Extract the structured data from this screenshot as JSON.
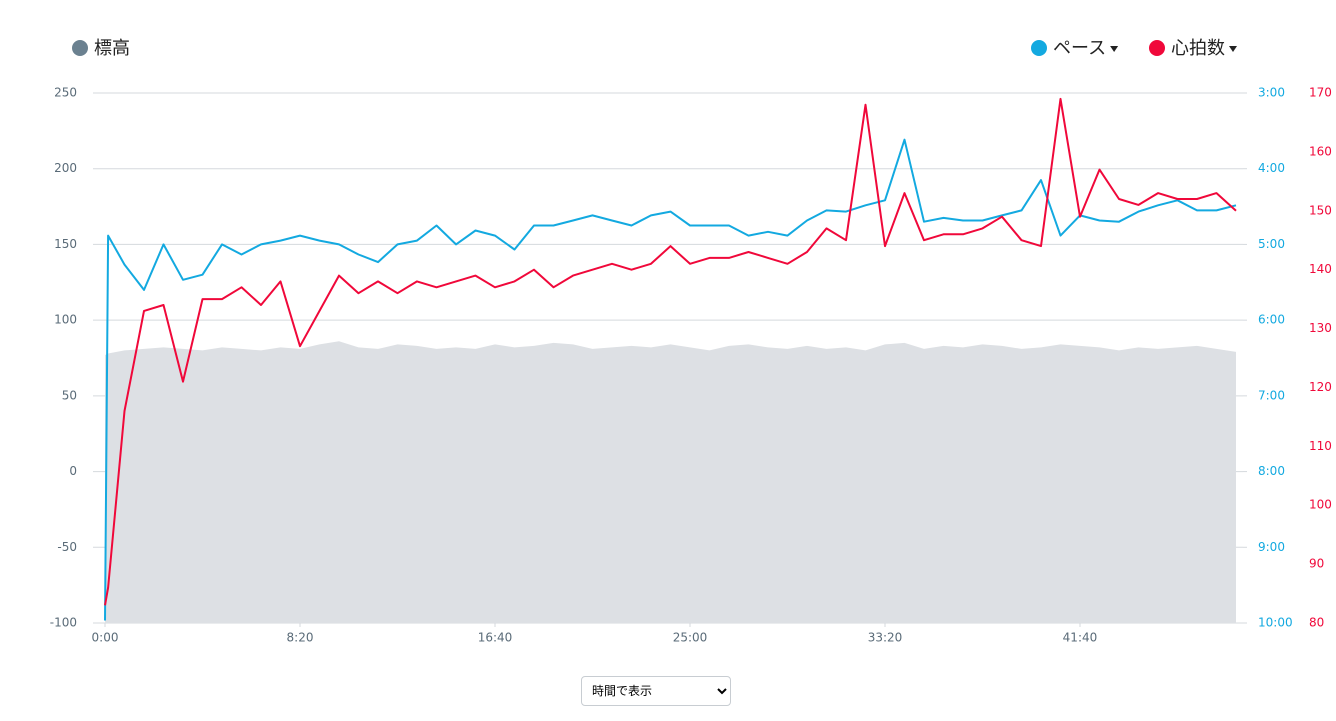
{
  "chart_data": {
    "type": "multi-axis-line",
    "x": [
      0,
      8,
      50,
      100,
      150,
      200,
      250,
      300,
      350,
      400,
      450,
      500,
      550,
      600,
      650,
      700,
      750,
      800,
      850,
      900,
      950,
      1000,
      1050,
      1100,
      1150,
      1200,
      1250,
      1300,
      1350,
      1400,
      1450,
      1500,
      1550,
      1600,
      1650,
      1700,
      1750,
      1800,
      1850,
      1900,
      1950,
      2000,
      2050,
      2100,
      2150,
      2200,
      2250,
      2300,
      2350,
      2400,
      2450,
      2500,
      2550,
      2600,
      2650,
      2700,
      2750,
      2800,
      2850,
      2900
    ],
    "xlim": [
      0,
      2918
    ],
    "xticks": [
      {
        "value": 0,
        "label": "0:00"
      },
      {
        "value": 500,
        "label": "8:20"
      },
      {
        "value": 1000,
        "label": "16:40"
      },
      {
        "value": 1500,
        "label": "25:00"
      },
      {
        "value": 2000,
        "label": "33:20"
      },
      {
        "value": 2500,
        "label": "41:40"
      }
    ],
    "ylim": [
      -100,
      250
    ],
    "yticks": [
      -100,
      -50,
      0,
      50,
      100,
      150,
      200,
      250
    ],
    "y2lim": [
      600,
      180
    ],
    "y2ticks": [
      {
        "value": 180,
        "label": "3:00"
      },
      {
        "value": 240,
        "label": "4:00"
      },
      {
        "value": 300,
        "label": "5:00"
      },
      {
        "value": 360,
        "label": "6:00"
      },
      {
        "value": 420,
        "label": "7:00"
      },
      {
        "value": 480,
        "label": "8:00"
      },
      {
        "value": 540,
        "label": "9:00"
      },
      {
        "value": 600,
        "label": "10:00"
      }
    ],
    "y3lim": [
      80,
      170
    ],
    "y3ticks": [
      80,
      90,
      100,
      110,
      120,
      130,
      140,
      150,
      160,
      170
    ],
    "grid": true,
    "series": [
      {
        "name": "標高",
        "type": "area",
        "axis": "y",
        "color": "#6b8190",
        "fill": "#dde0e4",
        "values": [
          77,
          78,
          80,
          81,
          82,
          81,
          80,
          82,
          81,
          80,
          82,
          81,
          84,
          86,
          82,
          81,
          84,
          83,
          81,
          82,
          81,
          84,
          82,
          83,
          85,
          84,
          81,
          82,
          83,
          82,
          84,
          82,
          80,
          83,
          84,
          82,
          81,
          83,
          81,
          82,
          80,
          84,
          85,
          81,
          83,
          82,
          84,
          83,
          81,
          82,
          84,
          83,
          82,
          80,
          82,
          81,
          82,
          83,
          81,
          79
        ]
      },
      {
        "name": "ペース",
        "type": "line",
        "axis": "y2",
        "color": "#13a9e0",
        "values": [
          598,
          293,
          316,
          336,
          300,
          328,
          324,
          300,
          308,
          300,
          297,
          293,
          297,
          300,
          308,
          314,
          300,
          297,
          285,
          300,
          289,
          293,
          304,
          285,
          285,
          281,
          277,
          281,
          285,
          277,
          274,
          285,
          285,
          285,
          293,
          290,
          293,
          281,
          273,
          274,
          269,
          265,
          217,
          282,
          279,
          281,
          281,
          277,
          273,
          249,
          293,
          277,
          281,
          282,
          274,
          269,
          265,
          273,
          273,
          269
        ]
      },
      {
        "name": "心拍数",
        "type": "line",
        "axis": "y3",
        "color": "#f0083a",
        "values": [
          83,
          86,
          116,
          133,
          134,
          121,
          135,
          135,
          137,
          134,
          138,
          127,
          133,
          139,
          136,
          138,
          136,
          138,
          137,
          138,
          139,
          137,
          138,
          140,
          137,
          139,
          140,
          141,
          140,
          141,
          144,
          141,
          142,
          142,
          143,
          142,
          141,
          143,
          147,
          145,
          168,
          144,
          153,
          145,
          146,
          146,
          147,
          149,
          145,
          144,
          169,
          149,
          157,
          152,
          151,
          153,
          152,
          152,
          153,
          150
        ]
      }
    ]
  },
  "control": {
    "selected": "時間で表示"
  }
}
